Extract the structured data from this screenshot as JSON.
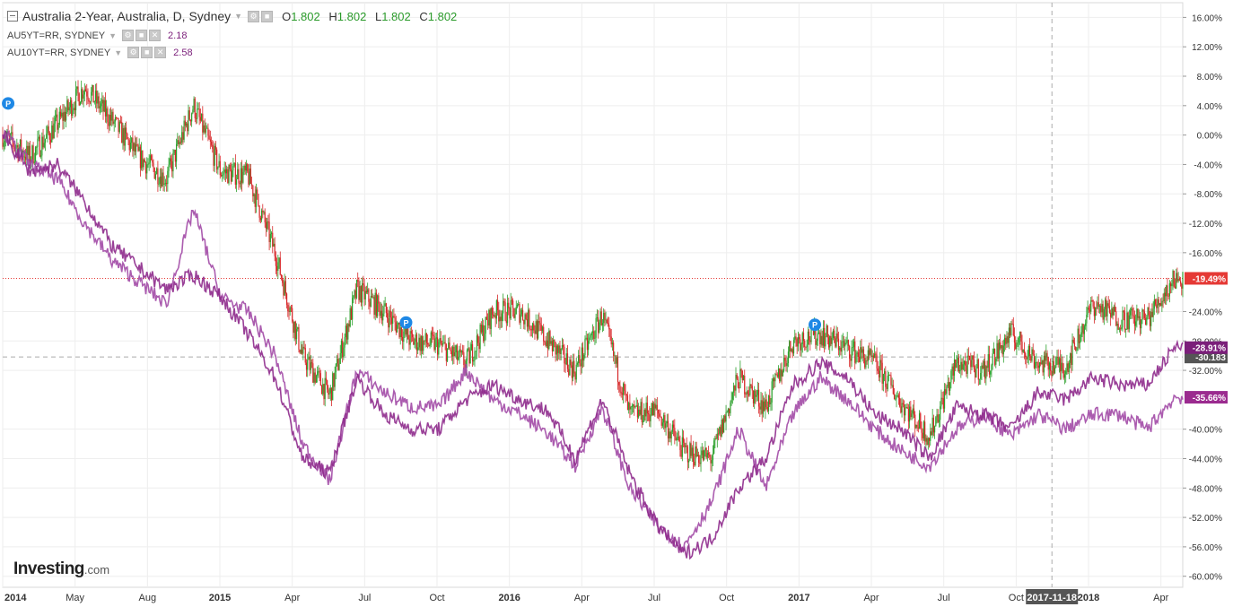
{
  "legend": {
    "main_title": "Australia 2-Year, Australia, D, Sydney",
    "ohlc": {
      "o_label": "O",
      "o": "1.802",
      "h_label": "H",
      "h": "1.802",
      "l_label": "L",
      "l": "1.802",
      "c_label": "C",
      "c": "1.802"
    },
    "series2_name": "AU5YT=RR, SYDNEY",
    "series2_value": "2.18",
    "series3_name": "AU10YT=RR, SYDNEY",
    "series3_value": "2.58"
  },
  "logo": {
    "brand": "Investing",
    "suffix": ".com"
  },
  "colors": {
    "up": "#2ca02c",
    "down": "#d62728",
    "line5": "#8e2a8c",
    "line10": "#a24aa6",
    "price_line": "#e53935",
    "crosshair": "#aaaaaa"
  },
  "crosshair_date_label": "2017-11-18",
  "crosshair_value_label": "-30.183",
  "markers": [
    "P",
    "P",
    "P"
  ],
  "chart_data": {
    "type": "line",
    "x_ticks": [
      "2014",
      "May",
      "Aug",
      "2015",
      "Apr",
      "Jul",
      "Oct",
      "2016",
      "Apr",
      "Jul",
      "Oct",
      "2017",
      "Apr",
      "Jul",
      "Oct",
      "2018",
      "Apr"
    ],
    "y_ticks": [
      "16.00%",
      "12.00%",
      "8.00%",
      "4.00%",
      "0.00%",
      "-4.00%",
      "-8.00%",
      "-12.00%",
      "-16.00%",
      "-24.00%",
      "-28.00%",
      "-32.00%",
      "-40.00%",
      "-44.00%",
      "-48.00%",
      "-52.00%",
      "-56.00%",
      "-60.00%"
    ],
    "ylim": [
      -61.5,
      18
    ],
    "last_value_labels": [
      {
        "text": "-19.49%",
        "value": -19.49,
        "color": "#e53935"
      },
      {
        "text": "-30.183",
        "value": -30.183,
        "color": "#555555"
      },
      {
        "text": "-28.91%",
        "value": -28.91,
        "color": "#7b1f7a"
      },
      {
        "text": "-35.66%",
        "value": -35.66,
        "color": "#9b2b8f"
      }
    ],
    "series": [
      {
        "name": "Australia 2-Year, Australia, D, Sydney",
        "style": "candlestick",
        "x": [
          2014.0,
          2014.1,
          2014.2,
          2014.3,
          2014.4,
          2014.5,
          2014.6,
          2014.7,
          2014.8,
          2014.9,
          2015.0,
          2015.1,
          2015.2,
          2015.3,
          2015.4,
          2015.5,
          2015.6,
          2015.7,
          2015.8,
          2015.9,
          2016.0,
          2016.1,
          2016.2,
          2016.3,
          2016.4,
          2016.5,
          2016.6,
          2016.7,
          2016.8,
          2016.9,
          2017.0,
          2017.1,
          2017.2,
          2017.3,
          2017.4,
          2017.5,
          2017.6,
          2017.7,
          2017.8,
          2017.9,
          2018.0,
          2018.1,
          2018.2,
          2018.3
        ],
        "values": [
          0.0,
          -3.0,
          1.5,
          6.5,
          2.0,
          -3.0,
          -6.0,
          4.0,
          -5.0,
          -5.5,
          -16.0,
          -30.0,
          -35.5,
          -21.0,
          -24.0,
          -28.0,
          -28.5,
          -31.0,
          -24.0,
          -24.0,
          -28.0,
          -32.0,
          -24.5,
          -38.0,
          -37.5,
          -43.0,
          -44.0,
          -33.0,
          -37.0,
          -28.0,
          -27.0,
          -29.0,
          -31.0,
          -36.5,
          -41.0,
          -31.0,
          -32.0,
          -27.0,
          -31.0,
          -31.5,
          -23.0,
          -25.0,
          -25.0,
          -19.5
        ]
      },
      {
        "name": "AU5YT=RR, SYDNEY",
        "style": "line",
        "x": [
          2014.0,
          2014.1,
          2014.2,
          2014.3,
          2014.4,
          2014.5,
          2014.6,
          2014.7,
          2014.8,
          2014.9,
          2015.0,
          2015.1,
          2015.2,
          2015.3,
          2015.4,
          2015.5,
          2015.6,
          2015.7,
          2015.8,
          2015.9,
          2016.0,
          2016.1,
          2016.2,
          2016.3,
          2016.4,
          2016.5,
          2016.6,
          2016.7,
          2016.8,
          2016.9,
          2017.0,
          2017.1,
          2017.2,
          2017.3,
          2017.4,
          2017.5,
          2017.6,
          2017.7,
          2017.8,
          2017.9,
          2018.0,
          2018.1,
          2018.2,
          2018.3
        ],
        "values": [
          0.0,
          -5.0,
          -4.0,
          -9.0,
          -15.0,
          -18.0,
          -21.0,
          -19.0,
          -22.0,
          -27.0,
          -33.0,
          -44.0,
          -46.0,
          -33.0,
          -38.0,
          -40.0,
          -40.0,
          -36.0,
          -34.0,
          -36.0,
          -37.5,
          -44.0,
          -36.0,
          -46.0,
          -53.0,
          -57.0,
          -55.0,
          -48.0,
          -44.0,
          -34.0,
          -31.0,
          -33.0,
          -38.0,
          -40.0,
          -44.0,
          -37.0,
          -38.0,
          -40.0,
          -35.0,
          -36.0,
          -33.0,
          -34.0,
          -34.0,
          -28.9
        ]
      },
      {
        "name": "AU10YT=RR, SYDNEY",
        "style": "line",
        "x": [
          2014.0,
          2014.1,
          2014.2,
          2014.3,
          2014.4,
          2014.5,
          2014.6,
          2014.7,
          2014.8,
          2014.9,
          2015.0,
          2015.1,
          2015.2,
          2015.3,
          2015.4,
          2015.5,
          2015.6,
          2015.7,
          2015.8,
          2015.9,
          2016.0,
          2016.1,
          2016.2,
          2016.3,
          2016.4,
          2016.5,
          2016.6,
          2016.7,
          2016.8,
          2016.9,
          2017.0,
          2017.1,
          2017.2,
          2017.3,
          2017.4,
          2017.5,
          2017.6,
          2017.7,
          2017.8,
          2017.9,
          2018.0,
          2018.1,
          2018.2,
          2018.3
        ],
        "values": [
          0.5,
          -4.0,
          -6.0,
          -12.0,
          -17.0,
          -20.0,
          -23.0,
          -10.0,
          -22.0,
          -24.0,
          -30.0,
          -42.0,
          -47.0,
          -32.0,
          -35.0,
          -37.0,
          -37.0,
          -32.0,
          -36.0,
          -38.0,
          -40.5,
          -45.0,
          -37.0,
          -48.0,
          -53.0,
          -56.0,
          -50.0,
          -40.0,
          -48.0,
          -38.0,
          -33.0,
          -36.0,
          -40.0,
          -43.0,
          -45.0,
          -40.0,
          -38.0,
          -41.0,
          -38.0,
          -40.0,
          -38.0,
          -38.0,
          -40.0,
          -35.66
        ]
      }
    ]
  }
}
